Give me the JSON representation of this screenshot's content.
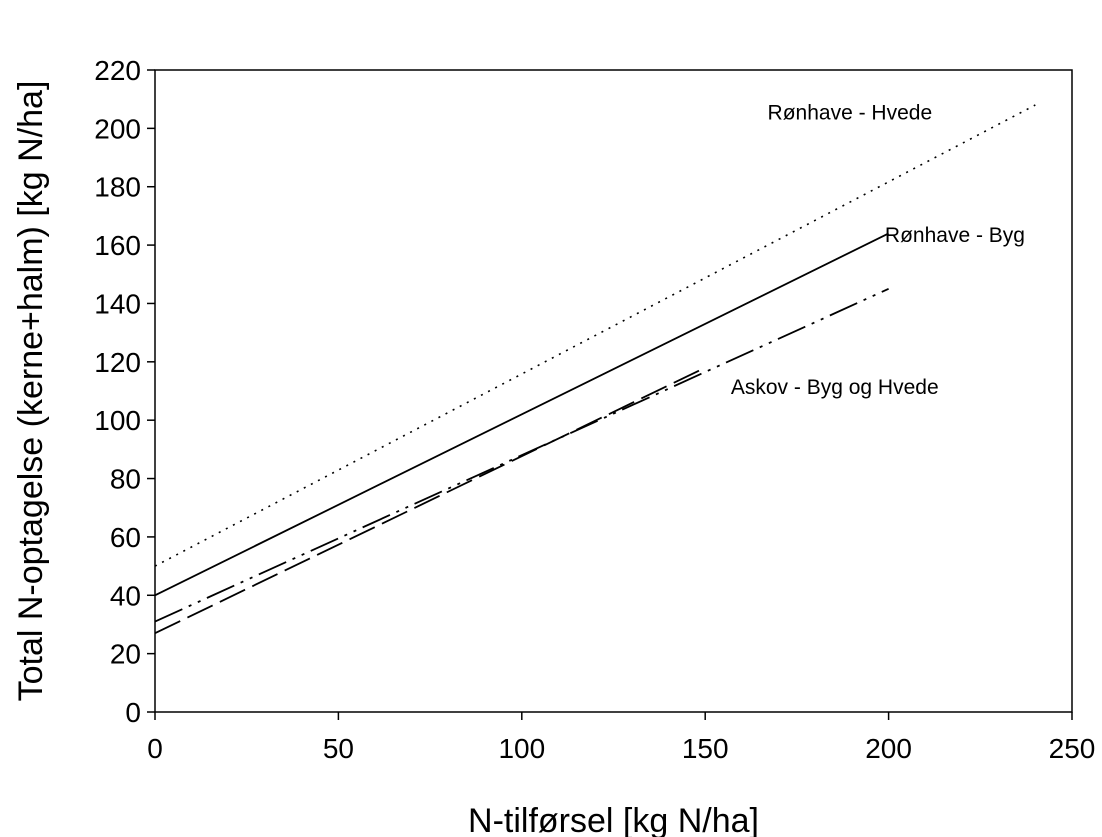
{
  "chart_data": {
    "type": "line",
    "xlabel": "N-tilførsel [kg N/ha]",
    "ylabel": "Total N-optagelse (kerne+halm) [kg N/ha]",
    "xlim": [
      0,
      250
    ],
    "ylim": [
      0,
      220
    ],
    "xticks": [
      0,
      50,
      100,
      150,
      200,
      250
    ],
    "yticks": [
      0,
      20,
      40,
      60,
      80,
      100,
      120,
      140,
      160,
      180,
      200,
      220
    ],
    "grid": false,
    "series": [
      {
        "name": "Rønhave - Hvede",
        "style": "dotted",
        "x": [
          0,
          240
        ],
        "y": [
          50,
          208
        ]
      },
      {
        "name": "Rønhave - Byg",
        "style": "solid",
        "x": [
          0,
          200
        ],
        "y": [
          40,
          164
        ]
      },
      {
        "name": "Askov - Byg og Hvede",
        "style": "dash-dot-dot",
        "x": [
          0,
          200
        ],
        "y": [
          31,
          145
        ]
      },
      {
        "name": "",
        "style": "long-dash",
        "x": [
          0,
          150
        ],
        "y": [
          27,
          118
        ]
      }
    ],
    "annotations": [
      {
        "text": "Rønhave - Hvede",
        "x": 167,
        "y": 203
      },
      {
        "text": "Rønhave - Byg",
        "x": 199,
        "y": 161
      },
      {
        "text": "Askov - Byg og Hvede",
        "x": 157,
        "y": 109
      }
    ]
  }
}
